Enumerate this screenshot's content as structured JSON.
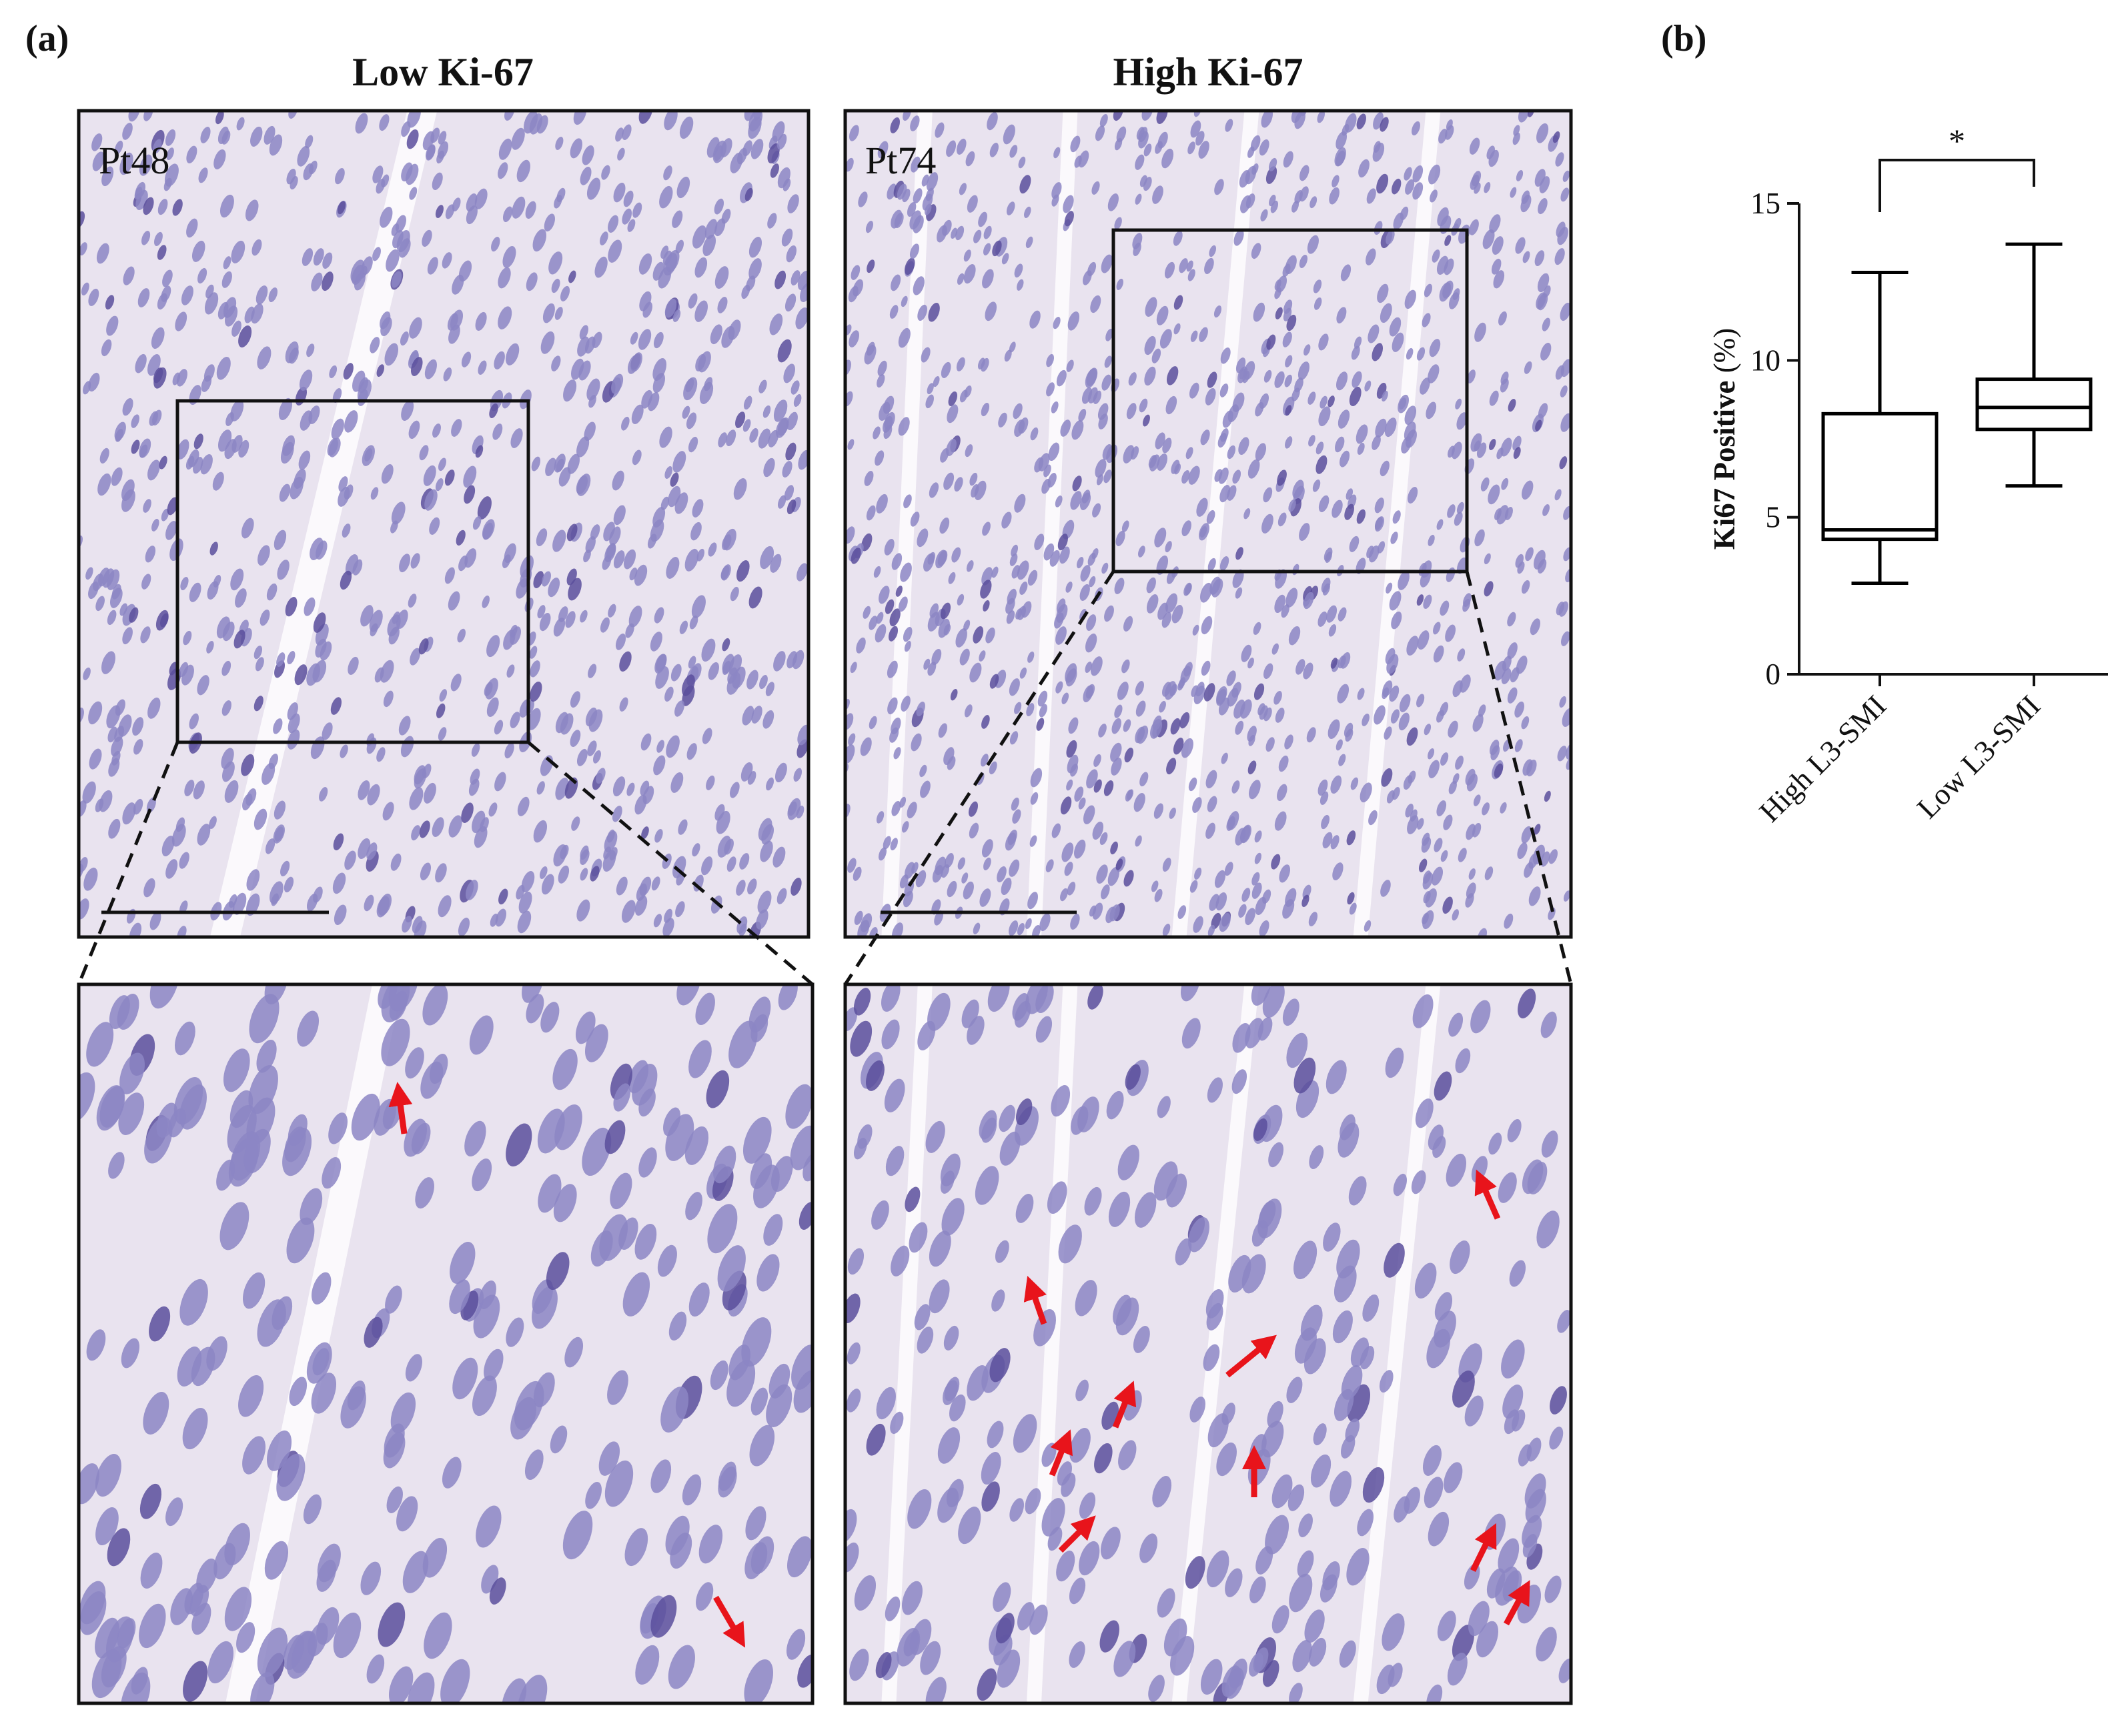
{
  "panel_a": {
    "label": "(a)",
    "column_titles": [
      "Low Ki-67",
      "High Ki-67"
    ],
    "sample_labels": [
      "Pt48",
      "Pt74"
    ]
  },
  "chart_data": {
    "type": "box",
    "label": "(b)",
    "y_label": "Ki67 Positive",
    "y_unit": "(%)",
    "categories": [
      "High L3-SMI",
      "Low L3-SMI"
    ],
    "boxes": [
      {
        "min": 2.9,
        "q1": 4.3,
        "median": 4.6,
        "q3": 8.3,
        "max": 12.8
      },
      {
        "min": 6.0,
        "q1": 7.8,
        "median": 8.5,
        "q3": 9.4,
        "max": 13.7
      }
    ],
    "color": "#000000",
    "ylim": [
      0,
      15
    ],
    "yticks": [
      0,
      5,
      10,
      15
    ],
    "significance": "*"
  }
}
